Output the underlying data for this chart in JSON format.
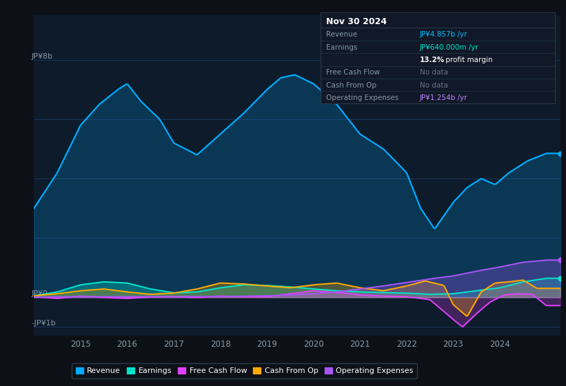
{
  "bg_color": "#0d1117",
  "chart_bg": "#0d1b2a",
  "grid_color": "#1e3a5f",
  "title": "Nov 30 2024",
  "info_box_rows": [
    {
      "label": "Revenue",
      "value": "JP¥4.857b /yr",
      "value_color": "#00bfff"
    },
    {
      "label": "Earnings",
      "value": "JP¥640.000m /yr",
      "value_color": "#00e5cc"
    },
    {
      "label": "",
      "value": "13.2% profit margin",
      "value_color": "#ffffff"
    },
    {
      "label": "Free Cash Flow",
      "value": "No data",
      "value_color": "#6b7280"
    },
    {
      "label": "Cash From Op",
      "value": "No data",
      "value_color": "#6b7280"
    },
    {
      "label": "Operating Expenses",
      "value": "JP¥1.254b /yr",
      "value_color": "#c084fc"
    }
  ],
  "ylabel_top": "JP¥8b",
  "ylabel_zero": "JP¥0",
  "ylabel_neg": "-JP¥1b",
  "x_ticks": [
    2015,
    2016,
    2017,
    2018,
    2019,
    2020,
    2021,
    2022,
    2023,
    2024
  ],
  "ylim": [
    -1.3,
    9.5
  ],
  "xmin": 2014.0,
  "xmax": 2025.3,
  "revenue_color": "#00aaff",
  "earnings_color": "#00e5cc",
  "fcf_color": "#e040fb",
  "cashfromop_color": "#ffaa00",
  "opex_color": "#a855f7",
  "legend": [
    {
      "label": "Revenue",
      "color": "#00aaff"
    },
    {
      "label": "Earnings",
      "color": "#00e5cc"
    },
    {
      "label": "Free Cash Flow",
      "color": "#e040fb"
    },
    {
      "label": "Cash From Op",
      "color": "#ffaa00"
    },
    {
      "label": "Operating Expenses",
      "color": "#a855f7"
    }
  ],
  "revenue_x": [
    2014.0,
    2014.5,
    2015.0,
    2015.4,
    2015.8,
    2016.0,
    2016.3,
    2016.7,
    2017.0,
    2017.5,
    2018.0,
    2018.5,
    2019.0,
    2019.3,
    2019.6,
    2020.0,
    2020.5,
    2021.0,
    2021.5,
    2022.0,
    2022.3,
    2022.6,
    2023.0,
    2023.3,
    2023.6,
    2023.9,
    2024.2,
    2024.6,
    2025.0
  ],
  "revenue_y": [
    3.0,
    4.2,
    5.8,
    6.5,
    7.0,
    7.2,
    6.6,
    6.0,
    5.2,
    4.8,
    5.5,
    6.2,
    7.0,
    7.4,
    7.5,
    7.2,
    6.5,
    5.5,
    5.0,
    4.2,
    3.0,
    2.3,
    3.2,
    3.7,
    4.0,
    3.8,
    4.2,
    4.6,
    4.85
  ],
  "earnings_x": [
    2014.0,
    2014.5,
    2015.0,
    2015.5,
    2016.0,
    2016.5,
    2017.0,
    2017.5,
    2018.0,
    2018.5,
    2019.0,
    2019.5,
    2020.0,
    2020.5,
    2021.0,
    2021.5,
    2022.0,
    2022.5,
    2023.0,
    2023.5,
    2024.0,
    2024.5,
    2025.0
  ],
  "earnings_y": [
    0.05,
    0.18,
    0.42,
    0.52,
    0.48,
    0.28,
    0.15,
    0.18,
    0.32,
    0.42,
    0.4,
    0.35,
    0.28,
    0.22,
    0.18,
    0.16,
    0.14,
    0.1,
    0.12,
    0.22,
    0.32,
    0.52,
    0.64
  ],
  "fcf_x": [
    2014.0,
    2014.5,
    2015.0,
    2015.5,
    2016.0,
    2016.5,
    2017.0,
    2017.5,
    2018.0,
    2018.5,
    2019.0,
    2019.5,
    2020.0,
    2020.5,
    2021.0,
    2021.5,
    2022.0,
    2022.5,
    2023.0,
    2023.2,
    2023.5,
    2023.8,
    2024.1,
    2024.4,
    2024.7,
    2025.0
  ],
  "fcf_y": [
    0.02,
    -0.04,
    0.04,
    -0.01,
    -0.04,
    0.01,
    0.02,
    -0.01,
    0.04,
    0.01,
    0.02,
    0.12,
    0.22,
    0.16,
    0.08,
    0.04,
    0.02,
    -0.08,
    -0.75,
    -1.0,
    -0.55,
    -0.15,
    0.08,
    0.12,
    0.1,
    -0.28
  ],
  "cfop_x": [
    2014.0,
    2014.5,
    2015.0,
    2015.5,
    2016.0,
    2016.5,
    2017.0,
    2017.5,
    2018.0,
    2018.5,
    2019.0,
    2019.5,
    2020.0,
    2020.5,
    2021.0,
    2021.5,
    2022.0,
    2022.4,
    2022.8,
    2023.0,
    2023.3,
    2023.6,
    2023.9,
    2024.2,
    2024.5,
    2024.8,
    2025.0
  ],
  "cfop_y": [
    0.05,
    0.12,
    0.22,
    0.28,
    0.18,
    0.1,
    0.14,
    0.28,
    0.48,
    0.45,
    0.38,
    0.32,
    0.42,
    0.48,
    0.32,
    0.22,
    0.38,
    0.55,
    0.4,
    -0.25,
    -0.65,
    0.18,
    0.48,
    0.52,
    0.58,
    0.3,
    0.3
  ],
  "opex_x": [
    2014.0,
    2015.0,
    2016.0,
    2017.0,
    2018.0,
    2019.0,
    2019.5,
    2020.0,
    2020.5,
    2021.0,
    2021.5,
    2022.0,
    2022.5,
    2023.0,
    2023.5,
    2024.0,
    2024.5,
    2025.0
  ],
  "opex_y": [
    0.01,
    0.02,
    0.02,
    0.02,
    0.02,
    0.05,
    0.08,
    0.12,
    0.18,
    0.28,
    0.38,
    0.5,
    0.62,
    0.72,
    0.88,
    1.02,
    1.18,
    1.254
  ]
}
